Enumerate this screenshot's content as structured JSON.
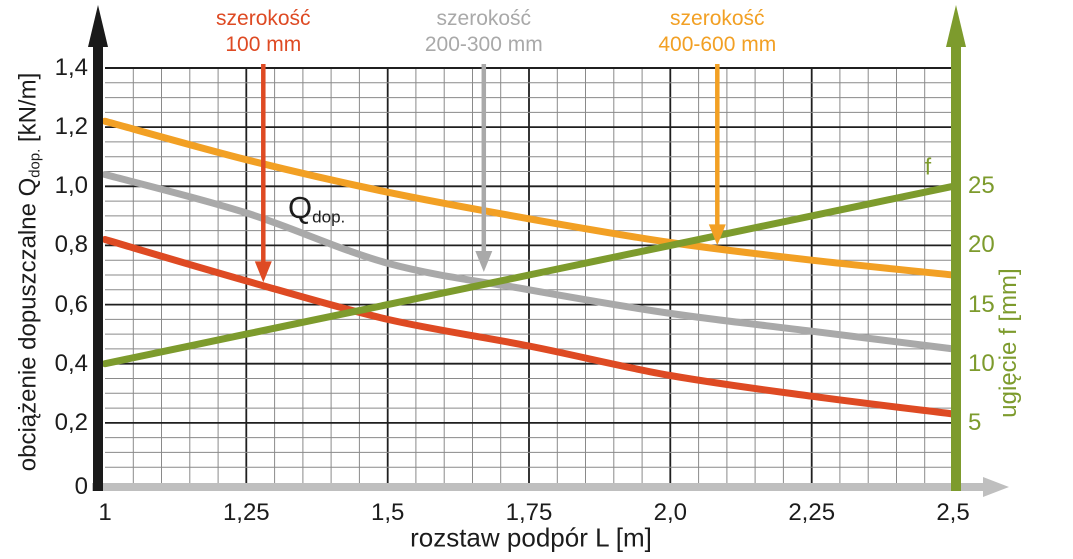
{
  "colors": {
    "red": "#de4a23",
    "orange": "#f2a024",
    "gray": "#a9a9a9",
    "green": "#7d9b2d",
    "axis_black": "#1a1a1a",
    "axis_gray": "#bfbfbf",
    "grid_minor": "#8a8a8a",
    "grid_major": "#1f1f1f",
    "text_dark": "#1c1c1c"
  },
  "axes": {
    "x": {
      "title": "rozstaw podpór L [m]",
      "ticks": [
        {
          "v": 1,
          "t": "1"
        },
        {
          "v": 1.25,
          "t": "1,25"
        },
        {
          "v": 1.5,
          "t": "1,5"
        },
        {
          "v": 1.75,
          "t": "1,75"
        },
        {
          "v": 2.0,
          "t": "2,0"
        },
        {
          "v": 2.25,
          "t": "2,25"
        },
        {
          "v": 2.5,
          "t": "2,5"
        }
      ]
    },
    "left": {
      "title_prefix": "obciążenie dopuszczalne Q",
      "title_sub": "dop.",
      "title_suffix": " [kN/m]",
      "ticks": [
        {
          "v": 1.4,
          "t": "1,4"
        },
        {
          "v": 1.2,
          "t": "1,2"
        },
        {
          "v": 1.0,
          "t": "1,0"
        },
        {
          "v": 0.8,
          "t": "0,8"
        },
        {
          "v": 0.6,
          "t": "0,6"
        },
        {
          "v": 0.4,
          "t": "0,4"
        },
        {
          "v": 0.2,
          "t": "0,2"
        },
        {
          "v": 0,
          "t": "0"
        }
      ]
    },
    "right": {
      "title": "ugięcie f [mm]",
      "ticks": [
        {
          "v": 25,
          "t": "25"
        },
        {
          "v": 20,
          "t": "20"
        },
        {
          "v": 15,
          "t": "15"
        },
        {
          "v": 10,
          "t": "10"
        },
        {
          "v": 5,
          "t": "5"
        }
      ]
    }
  },
  "annotations": {
    "red": {
      "line1": "szerokość",
      "line2": "100 mm",
      "arrow_L": 1.28,
      "arrow_tip_Q": 0.675,
      "color_key": "red"
    },
    "gray": {
      "line1": "szerokość",
      "line2": "200-300 mm",
      "arrow_L": 1.67,
      "arrow_tip_Q": 0.71,
      "color_key": "gray"
    },
    "orange": {
      "line1": "szerokość",
      "line2": "400-600 mm",
      "arrow_L": 2.083,
      "arrow_tip_Q": 0.8,
      "color_key": "orange"
    }
  },
  "inline_labels": {
    "q_main": "Q",
    "q_sub": "dop.",
    "f": "f"
  },
  "chart_data": {
    "type": "line",
    "title": "",
    "xlabel": "rozstaw podpór L [m]",
    "ylabel_left": "obciążenie dopuszczalne Qdop. [kN/m]",
    "ylabel_right": "ugięcie f [mm]",
    "x_range": [
      1,
      2.5
    ],
    "y_left_range": [
      0,
      1.4
    ],
    "y_right_range": [
      0,
      35
    ],
    "grid": {
      "on": true,
      "x_minor": 0.05,
      "x_major": 0.25,
      "y_minor_Q": 0.05,
      "y_major_Q": 0.2
    },
    "legend_position": "none",
    "x": [
      1,
      1.25,
      1.5,
      1.75,
      2.0,
      2.25,
      2.5
    ],
    "series": [
      {
        "name": "szerokość 100 mm",
        "axis": "left",
        "unit": "kN/m",
        "color_key": "red",
        "values": [
          0.82,
          0.68,
          0.55,
          0.46,
          0.36,
          0.29,
          0.23
        ]
      },
      {
        "name": "szerokość 200-300 mm",
        "axis": "left",
        "unit": "kN/m",
        "color_key": "gray",
        "values": [
          1.04,
          0.91,
          0.74,
          0.65,
          0.57,
          0.51,
          0.45
        ]
      },
      {
        "name": "szerokość 400-600 mm",
        "axis": "left",
        "unit": "kN/m",
        "color_key": "orange",
        "values": [
          1.22,
          1.09,
          0.98,
          0.89,
          0.81,
          0.75,
          0.7
        ]
      },
      {
        "name": "ugięcie f",
        "axis": "right",
        "unit": "mm",
        "color_key": "green",
        "values": [
          10,
          12.5,
          15,
          17.5,
          20,
          22.5,
          25
        ]
      }
    ]
  }
}
